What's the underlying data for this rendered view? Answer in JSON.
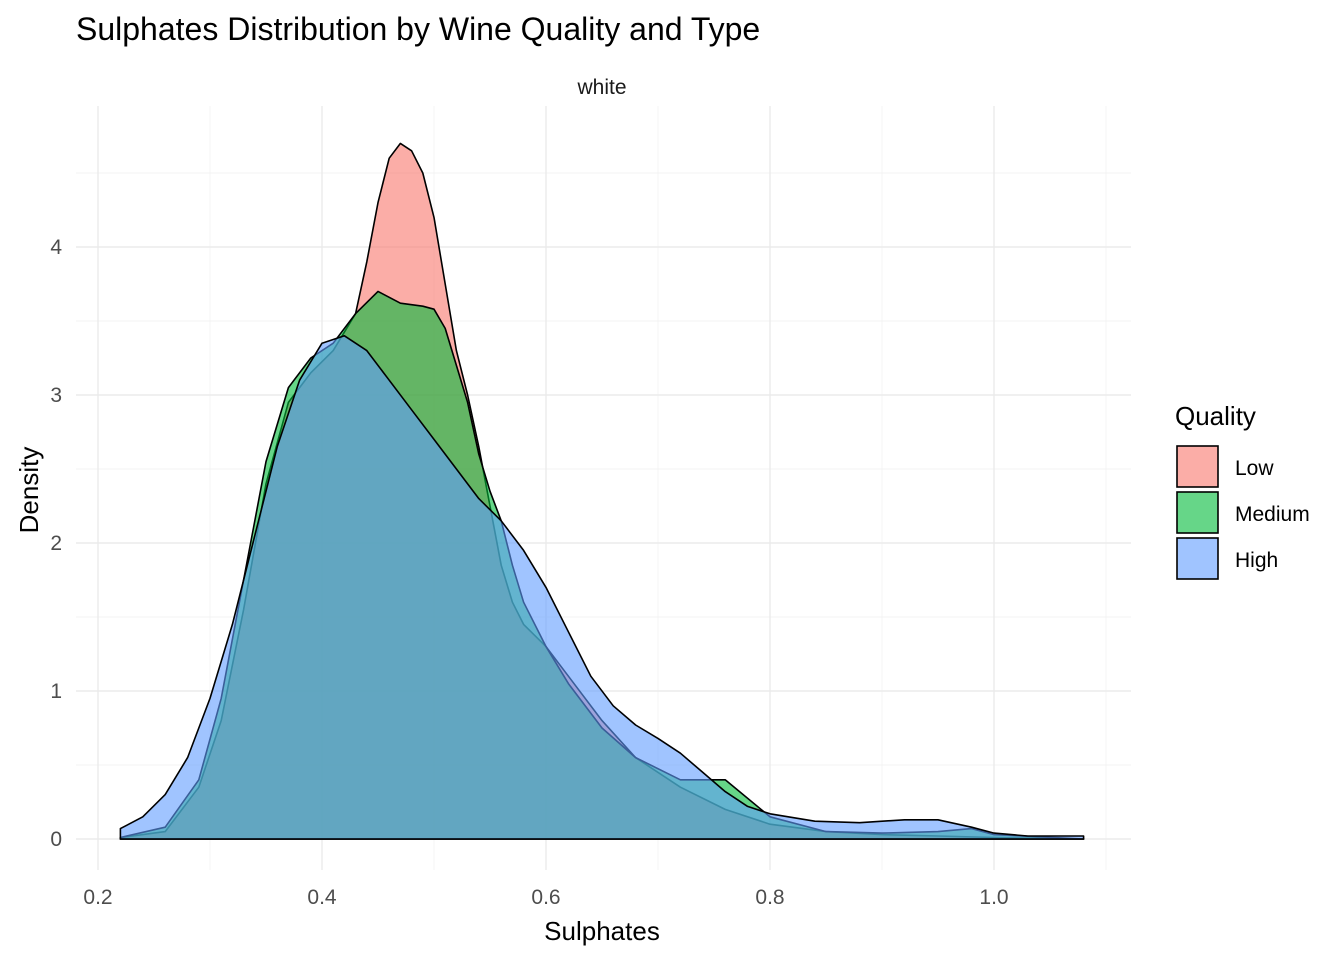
{
  "chart_data": {
    "type": "area",
    "title": "Sulphates Distribution by Wine Quality and Type",
    "facet_label": "white",
    "xlabel": "Sulphates",
    "ylabel": "Density",
    "xlim": [
      0.2,
      1.1
    ],
    "ylim": [
      0,
      4.7
    ],
    "x_ticks": [
      0.2,
      0.4,
      0.6,
      0.8,
      1.0
    ],
    "x_tick_labels": [
      "0.2",
      "0.4",
      "0.6",
      "0.8",
      "1.0"
    ],
    "y_ticks": [
      0,
      1,
      2,
      3,
      4
    ],
    "y_tick_labels": [
      "0",
      "1",
      "2",
      "3",
      "4"
    ],
    "grid": true,
    "legend": {
      "title": "Quality",
      "position": "right"
    },
    "series": [
      {
        "name": "Low",
        "color": "#F8766D",
        "points": [
          [
            0.22,
            0.01
          ],
          [
            0.26,
            0.05
          ],
          [
            0.29,
            0.35
          ],
          [
            0.31,
            0.8
          ],
          [
            0.33,
            1.55
          ],
          [
            0.35,
            2.4
          ],
          [
            0.37,
            2.95
          ],
          [
            0.39,
            3.15
          ],
          [
            0.41,
            3.3
          ],
          [
            0.43,
            3.55
          ],
          [
            0.44,
            3.9
          ],
          [
            0.45,
            4.3
          ],
          [
            0.46,
            4.6
          ],
          [
            0.47,
            4.7
          ],
          [
            0.48,
            4.65
          ],
          [
            0.49,
            4.5
          ],
          [
            0.5,
            4.2
          ],
          [
            0.51,
            3.75
          ],
          [
            0.52,
            3.3
          ],
          [
            0.53,
            3.0
          ],
          [
            0.54,
            2.65
          ],
          [
            0.55,
            2.25
          ],
          [
            0.56,
            1.85
          ],
          [
            0.57,
            1.6
          ],
          [
            0.58,
            1.45
          ],
          [
            0.6,
            1.3
          ],
          [
            0.62,
            1.1
          ],
          [
            0.65,
            0.8
          ],
          [
            0.68,
            0.55
          ],
          [
            0.72,
            0.35
          ],
          [
            0.76,
            0.2
          ],
          [
            0.8,
            0.1
          ],
          [
            0.85,
            0.05
          ],
          [
            0.9,
            0.03
          ],
          [
            0.95,
            0.02
          ],
          [
            1.0,
            0.01
          ],
          [
            1.08,
            0.0
          ]
        ]
      },
      {
        "name": "Medium",
        "color": "#00BA38",
        "points": [
          [
            0.22,
            0.01
          ],
          [
            0.26,
            0.08
          ],
          [
            0.29,
            0.4
          ],
          [
            0.31,
            0.95
          ],
          [
            0.33,
            1.75
          ],
          [
            0.35,
            2.55
          ],
          [
            0.37,
            3.05
          ],
          [
            0.39,
            3.25
          ],
          [
            0.41,
            3.35
          ],
          [
            0.43,
            3.55
          ],
          [
            0.45,
            3.7
          ],
          [
            0.47,
            3.62
          ],
          [
            0.49,
            3.6
          ],
          [
            0.5,
            3.58
          ],
          [
            0.51,
            3.45
          ],
          [
            0.52,
            3.2
          ],
          [
            0.53,
            2.95
          ],
          [
            0.54,
            2.6
          ],
          [
            0.55,
            2.35
          ],
          [
            0.56,
            2.15
          ],
          [
            0.57,
            1.85
          ],
          [
            0.58,
            1.6
          ],
          [
            0.6,
            1.3
          ],
          [
            0.62,
            1.05
          ],
          [
            0.65,
            0.75
          ],
          [
            0.68,
            0.55
          ],
          [
            0.72,
            0.4
          ],
          [
            0.76,
            0.4
          ],
          [
            0.8,
            0.15
          ],
          [
            0.85,
            0.05
          ],
          [
            0.9,
            0.04
          ],
          [
            0.95,
            0.05
          ],
          [
            0.98,
            0.07
          ],
          [
            1.0,
            0.03
          ],
          [
            1.08,
            0.0
          ]
        ]
      },
      {
        "name": "High",
        "color": "#619CFF",
        "points": [
          [
            0.22,
            0.07
          ],
          [
            0.24,
            0.15
          ],
          [
            0.26,
            0.3
          ],
          [
            0.28,
            0.55
          ],
          [
            0.3,
            0.95
          ],
          [
            0.32,
            1.45
          ],
          [
            0.34,
            2.05
          ],
          [
            0.36,
            2.65
          ],
          [
            0.38,
            3.1
          ],
          [
            0.4,
            3.35
          ],
          [
            0.42,
            3.4
          ],
          [
            0.44,
            3.3
          ],
          [
            0.46,
            3.1
          ],
          [
            0.48,
            2.9
          ],
          [
            0.5,
            2.7
          ],
          [
            0.52,
            2.5
          ],
          [
            0.54,
            2.3
          ],
          [
            0.56,
            2.15
          ],
          [
            0.58,
            1.95
          ],
          [
            0.6,
            1.7
          ],
          [
            0.62,
            1.4
          ],
          [
            0.64,
            1.1
          ],
          [
            0.66,
            0.9
          ],
          [
            0.68,
            0.77
          ],
          [
            0.7,
            0.68
          ],
          [
            0.72,
            0.58
          ],
          [
            0.74,
            0.45
          ],
          [
            0.76,
            0.32
          ],
          [
            0.78,
            0.22
          ],
          [
            0.8,
            0.17
          ],
          [
            0.84,
            0.12
          ],
          [
            0.88,
            0.11
          ],
          [
            0.92,
            0.13
          ],
          [
            0.95,
            0.13
          ],
          [
            0.98,
            0.08
          ],
          [
            1.0,
            0.04
          ],
          [
            1.03,
            0.02
          ],
          [
            1.08,
            0.02
          ]
        ]
      }
    ]
  }
}
